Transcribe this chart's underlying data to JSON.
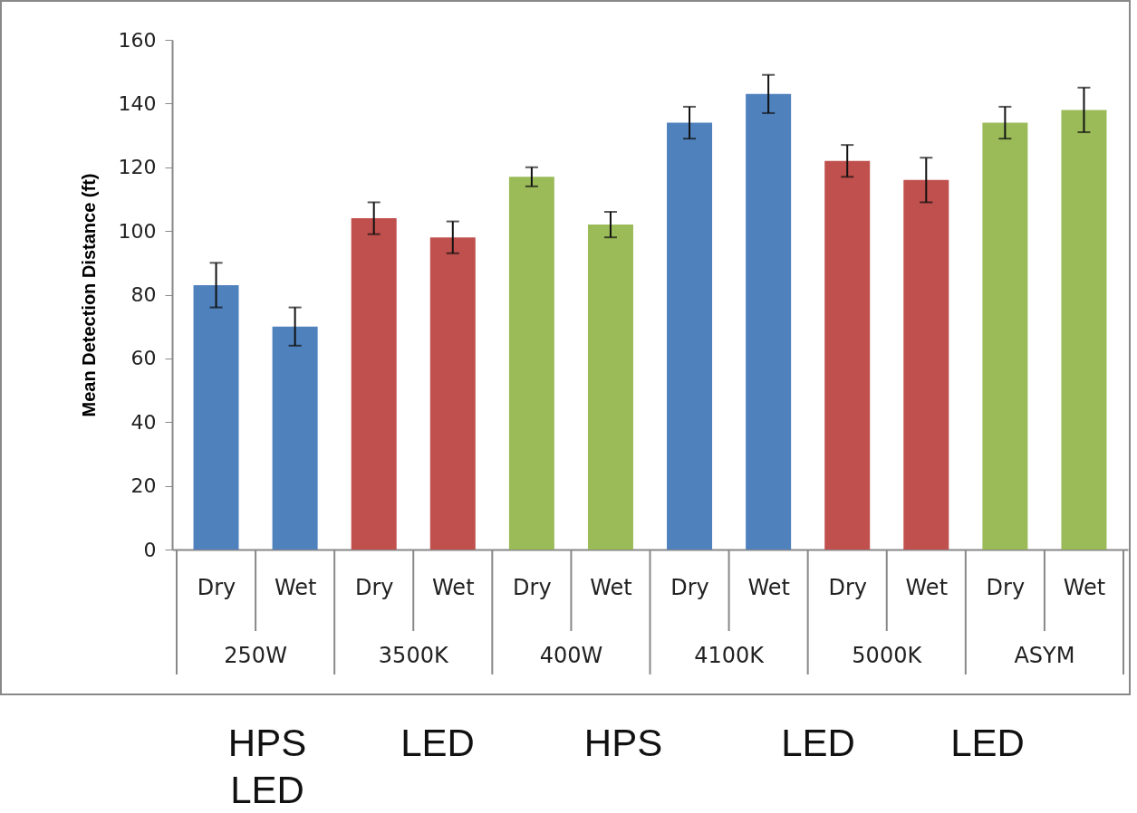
{
  "chart_data": {
    "type": "bar",
    "ylabel": "Mean Detection Distance  (ft)",
    "categories": [
      "Dry",
      "Wet",
      "Dry",
      "Wet",
      "Dry",
      "Wet",
      "Dry",
      "Wet",
      "Dry",
      "Wet",
      "Dry",
      "Wet"
    ],
    "values": [
      83,
      70,
      104,
      98,
      117,
      102,
      134,
      143,
      122,
      116,
      134,
      138
    ],
    "errors": [
      7,
      6,
      5,
      5,
      3,
      4,
      5,
      6,
      5,
      7,
      5,
      7
    ],
    "colors": [
      "#4f81bd",
      "#4f81bd",
      "#c0504d",
      "#c0504d",
      "#9bbb59",
      "#9bbb59",
      "#4f81bd",
      "#4f81bd",
      "#c0504d",
      "#c0504d",
      "#9bbb59",
      "#9bbb59"
    ],
    "ylim": [
      0,
      160
    ],
    "yticks": [
      0,
      20,
      40,
      60,
      80,
      100,
      120,
      140,
      160
    ],
    "grid": false,
    "annotations": [
      "250W",
      "3500K",
      "400W",
      "4100K",
      "5000K",
      "ASYM",
      "HPS\nLED",
      "LED",
      "HPS",
      "LED",
      "LED"
    ]
  }
}
